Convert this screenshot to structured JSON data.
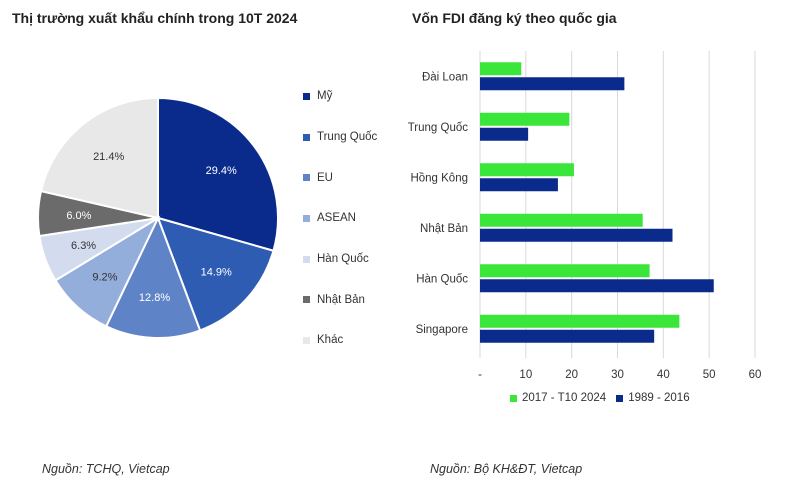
{
  "left_chart": {
    "title": "Thị trường xuất khẩu chính trong 10T 2024",
    "source": "Nguồn: TCHQ, Vietcap"
  },
  "right_chart": {
    "title": "Vốn FDI đăng ký theo quốc gia",
    "source": "Nguồn: Bộ KH&ĐT, Vietcap"
  },
  "chart_data": [
    {
      "type": "pie",
      "title": "Thị trường xuất khẩu chính trong 10T 2024",
      "categories": [
        "Mỹ",
        "Trung Quốc",
        "EU",
        "ASEAN",
        "Hàn Quốc",
        "Nhật Bản",
        "Khác"
      ],
      "values": [
        29.4,
        14.9,
        12.8,
        9.2,
        6.3,
        6.0,
        21.4
      ],
      "labels": [
        "29.4%",
        "14.9%",
        "12.8%",
        "9.2%",
        "6.3%",
        "6.0%",
        "21.4%"
      ],
      "colors": [
        "#0a2b8c",
        "#2f5cb3",
        "#5f83c7",
        "#94aedb",
        "#d3dcee",
        "#6b6b6b",
        "#e8e8e8"
      ],
      "legend_position": "right"
    },
    {
      "type": "bar",
      "orientation": "horizontal",
      "title": "Vốn FDI đăng ký theo quốc gia",
      "categories": [
        "Đài Loan",
        "Trung Quốc",
        "Hồng Kông",
        "Nhật Bản",
        "Hàn Quốc",
        "Singapore"
      ],
      "series": [
        {
          "name": "2017 - T10 2024",
          "color": "#39e639",
          "values": [
            9,
            19.5,
            20.5,
            35.5,
            37,
            43.5
          ]
        },
        {
          "name": "1989 - 2016",
          "color": "#0a2b8c",
          "values": [
            31.5,
            10.5,
            17,
            42,
            51,
            38
          ]
        }
      ],
      "xlim": [
        0,
        60
      ],
      "xticks": [
        "-",
        "10",
        "20",
        "30",
        "40",
        "50",
        "60"
      ],
      "grid": "vertical",
      "legend_position": "bottom"
    }
  ]
}
